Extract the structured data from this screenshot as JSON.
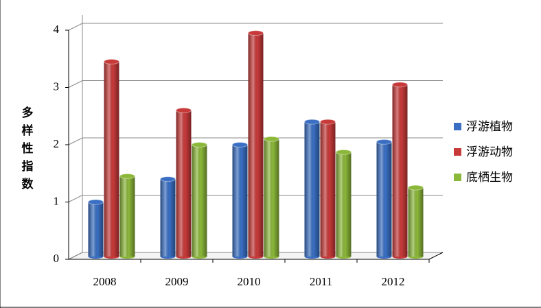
{
  "chart_data": {
    "type": "bar",
    "y_label": [
      "多",
      "样",
      "性",
      "指",
      "数"
    ],
    "categories": [
      "2008",
      "2009",
      "2010",
      "2011",
      "2012"
    ],
    "series": [
      {
        "name": "浮游植物",
        "color": "#3a6fc4",
        "values": [
          1.0,
          1.4,
          2.0,
          2.4,
          2.05
        ]
      },
      {
        "name": "浮游动物",
        "color": "#c83a3a",
        "values": [
          3.45,
          2.6,
          3.95,
          2.4,
          3.05
        ]
      },
      {
        "name": "底栖生物",
        "color": "#8cb83a",
        "values": [
          1.45,
          2.0,
          2.1,
          1.87,
          1.25
        ]
      }
    ],
    "ylim": [
      0,
      4
    ],
    "yticks": [
      0,
      1,
      2,
      3,
      4
    ],
    "grid": true,
    "legend": "right"
  }
}
